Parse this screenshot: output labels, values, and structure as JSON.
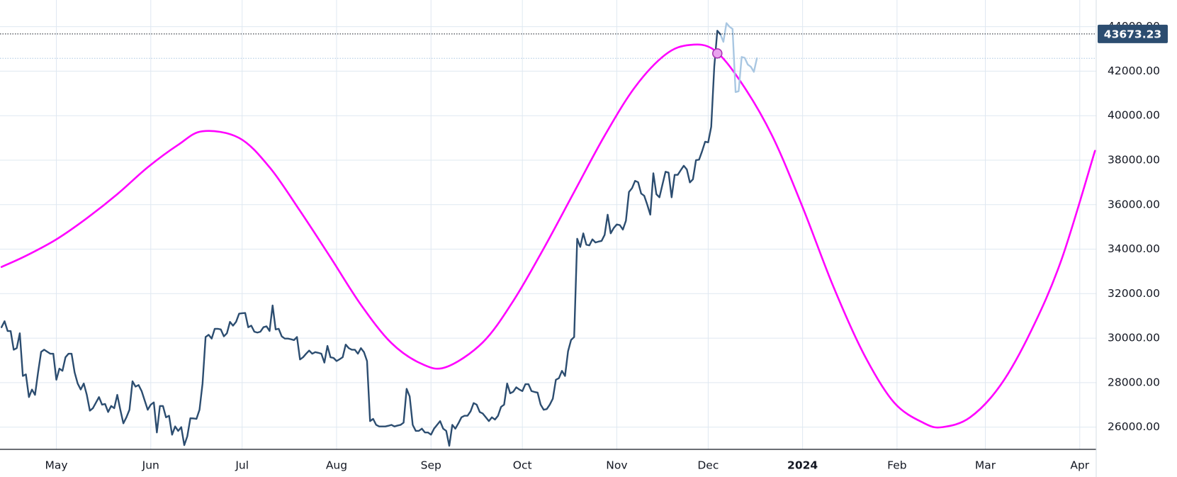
{
  "chart_data": {
    "type": "line",
    "xlim": [
      -18.5,
      341.4
    ],
    "ylim": [
      25000,
      45200
    ],
    "grid": true,
    "xticks": [
      {
        "value": 0,
        "label": "May"
      },
      {
        "value": 31,
        "label": "Jun"
      },
      {
        "value": 61,
        "label": "Jul"
      },
      {
        "value": 92,
        "label": "Aug"
      },
      {
        "value": 123,
        "label": "Sep"
      },
      {
        "value": 153,
        "label": "Oct"
      },
      {
        "value": 184,
        "label": "Nov"
      },
      {
        "value": 214,
        "label": "Dec"
      },
      {
        "value": 245,
        "label": "2024",
        "bold": true
      },
      {
        "value": 276,
        "label": "Feb"
      },
      {
        "value": 305,
        "label": "Mar"
      },
      {
        "value": 336,
        "label": "Apr"
      }
    ],
    "yticks": [
      {
        "value": 26000,
        "label": "26000.00"
      },
      {
        "value": 28000,
        "label": "28000.00"
      },
      {
        "value": 30000,
        "label": "30000.00"
      },
      {
        "value": 32000,
        "label": "32000.00"
      },
      {
        "value": 34000,
        "label": "34000.00"
      },
      {
        "value": 36000,
        "label": "36000.00"
      },
      {
        "value": 38000,
        "label": "38000.00"
      },
      {
        "value": 40000,
        "label": "40000.00"
      },
      {
        "value": 42000,
        "label": "42000.00"
      },
      {
        "value": 44000,
        "label": "44000.00"
      }
    ],
    "series": [
      {
        "color": "#2c4d70",
        "width": 2.4,
        "smooth": false,
        "x": [
          -18,
          -17,
          -16,
          -15,
          -14,
          -13,
          -12,
          -11,
          -10,
          -9,
          -8,
          -7,
          -6,
          -5,
          -4,
          -3,
          -2,
          -1,
          0,
          1,
          2,
          3,
          4,
          5,
          6,
          7,
          8,
          9,
          10,
          11,
          12,
          13,
          14,
          15,
          16,
          17,
          18,
          19,
          20,
          21,
          22,
          23,
          24,
          25,
          26,
          27,
          28,
          29,
          30,
          31,
          32,
          33,
          34,
          35,
          36,
          37,
          38,
          39,
          40,
          41,
          42,
          43,
          44,
          45,
          46,
          47,
          48,
          49,
          50,
          51,
          52,
          53,
          54,
          55,
          56,
          57,
          58,
          59,
          60,
          61,
          62,
          63,
          64,
          65,
          66,
          67,
          68,
          69,
          70,
          71,
          72,
          73,
          74,
          75,
          76,
          77,
          78,
          79,
          80,
          81,
          82,
          83,
          84,
          85,
          86,
          87,
          88,
          89,
          90,
          91,
          92,
          93,
          94,
          95,
          96,
          97,
          98,
          99,
          100,
          101,
          102,
          103,
          104,
          105,
          106,
          107,
          108,
          109,
          110,
          111,
          112,
          113,
          114,
          115,
          116,
          117,
          118,
          119,
          120,
          121,
          122,
          123,
          124,
          125,
          126,
          127,
          128,
          129,
          130,
          131,
          132,
          133,
          134,
          135,
          136,
          137,
          138,
          139,
          140,
          141,
          142,
          143,
          144,
          145,
          146,
          147,
          148,
          149,
          150,
          151,
          152,
          153,
          154,
          155,
          156,
          157,
          158,
          159,
          160,
          161,
          162,
          163,
          164,
          165,
          166,
          167,
          168,
          169,
          170,
          171,
          172,
          173,
          174,
          175,
          176,
          177,
          178,
          179,
          180,
          181,
          182,
          183,
          184,
          185,
          186,
          187,
          188,
          189,
          190,
          191,
          192,
          193,
          194,
          195,
          196,
          197,
          198,
          199,
          200,
          201,
          202,
          203,
          204,
          205,
          206,
          207,
          208,
          209,
          210,
          211,
          212,
          213,
          214,
          215,
          216,
          217,
          218
        ],
        "values": [
          30490,
          30760,
          30320,
          30320,
          29480,
          29550,
          30220,
          28300,
          28370,
          27350,
          27690,
          27450,
          28460,
          29380,
          29480,
          29390,
          29300,
          29300,
          28130,
          28630,
          28530,
          29140,
          29300,
          29300,
          28460,
          27960,
          27690,
          27960,
          27450,
          26740,
          26850,
          27100,
          27350,
          27010,
          27040,
          26680,
          26950,
          26850,
          27450,
          26780,
          26170,
          26440,
          26780,
          28060,
          27820,
          27890,
          27620,
          27200,
          26780,
          27010,
          27110,
          25760,
          26950,
          26950,
          26440,
          26510,
          25660,
          26030,
          25830,
          26000,
          25190,
          25590,
          26400,
          26390,
          26370,
          26780,
          27960,
          30050,
          30150,
          29980,
          30420,
          30420,
          30390,
          30080,
          30220,
          30730,
          30560,
          30730,
          31100,
          31120,
          31130,
          30490,
          30560,
          30290,
          30250,
          30290,
          30490,
          30530,
          30320,
          31470,
          30390,
          30420,
          30080,
          29980,
          29980,
          29950,
          29910,
          30050,
          29040,
          29140,
          29300,
          29440,
          29300,
          29370,
          29340,
          29300,
          28900,
          29650,
          29140,
          29110,
          28970,
          29050,
          29140,
          29710,
          29550,
          29480,
          29480,
          29300,
          29550,
          29370,
          28970,
          26270,
          26370,
          26100,
          26030,
          26030,
          26030,
          26060,
          26100,
          26030,
          26070,
          26100,
          26200,
          27720,
          27380,
          26100,
          25830,
          25830,
          25930,
          25760,
          25760,
          25660,
          25930,
          26100,
          26270,
          25930,
          25830,
          25160,
          26100,
          25930,
          26170,
          26440,
          26510,
          26510,
          26710,
          27080,
          27010,
          26680,
          26610,
          26440,
          26270,
          26440,
          26340,
          26510,
          26910,
          27010,
          27960,
          27520,
          27590,
          27790,
          27690,
          27620,
          27930,
          27930,
          27620,
          27580,
          27550,
          27010,
          26780,
          26810,
          27010,
          27280,
          28130,
          28200,
          28530,
          28300,
          29410,
          29920,
          30050,
          34470,
          34100,
          34710,
          34200,
          34170,
          34440,
          34300,
          34340,
          34370,
          34640,
          35550,
          34710,
          34950,
          35110,
          35080,
          34880,
          35280,
          36570,
          36740,
          37070,
          37010,
          36500,
          36400,
          36000,
          35550,
          37410,
          36470,
          36330,
          36910,
          37480,
          37440,
          36330,
          37340,
          37340,
          37550,
          37750,
          37580,
          37000,
          37140,
          38000,
          38020,
          38400,
          38830,
          38800,
          39500,
          42200,
          43820,
          43660
        ]
      },
      {
        "color": "#a9c7e2",
        "width": 2.4,
        "smooth": false,
        "x": [
          218,
          219,
          220,
          221,
          222,
          223,
          224,
          225,
          226,
          227,
          228,
          229,
          230
        ],
        "values": [
          43660,
          43320,
          44160,
          44000,
          43900,
          41060,
          41100,
          42640,
          42600,
          42300,
          42200,
          41970,
          42580
        ]
      },
      {
        "color": "#ff00ff",
        "width": 2.6,
        "smooth": true,
        "x": [
          -18,
          -10,
          0,
          10,
          20,
          30,
          40,
          48,
          60,
          70,
          80,
          90,
          100,
          110,
          120,
          128,
          140,
          150,
          160,
          170,
          180,
          190,
          200,
          208,
          216,
          225,
          235,
          245,
          255,
          265,
          275,
          285,
          291,
          300,
          310,
          320,
          330,
          341
        ],
        "values": [
          33200,
          33700,
          34440,
          35390,
          36470,
          37680,
          38690,
          39300,
          39000,
          37680,
          35720,
          33630,
          31500,
          29780,
          28840,
          28700,
          29810,
          31670,
          34030,
          36570,
          39100,
          41290,
          42750,
          43180,
          42950,
          41460,
          39100,
          35890,
          32350,
          29310,
          27110,
          26170,
          26000,
          26440,
          27890,
          30320,
          33530,
          38420
        ]
      }
    ],
    "price_line": 43673.23,
    "marker": {
      "x": 217,
      "value": 42800
    }
  }
}
